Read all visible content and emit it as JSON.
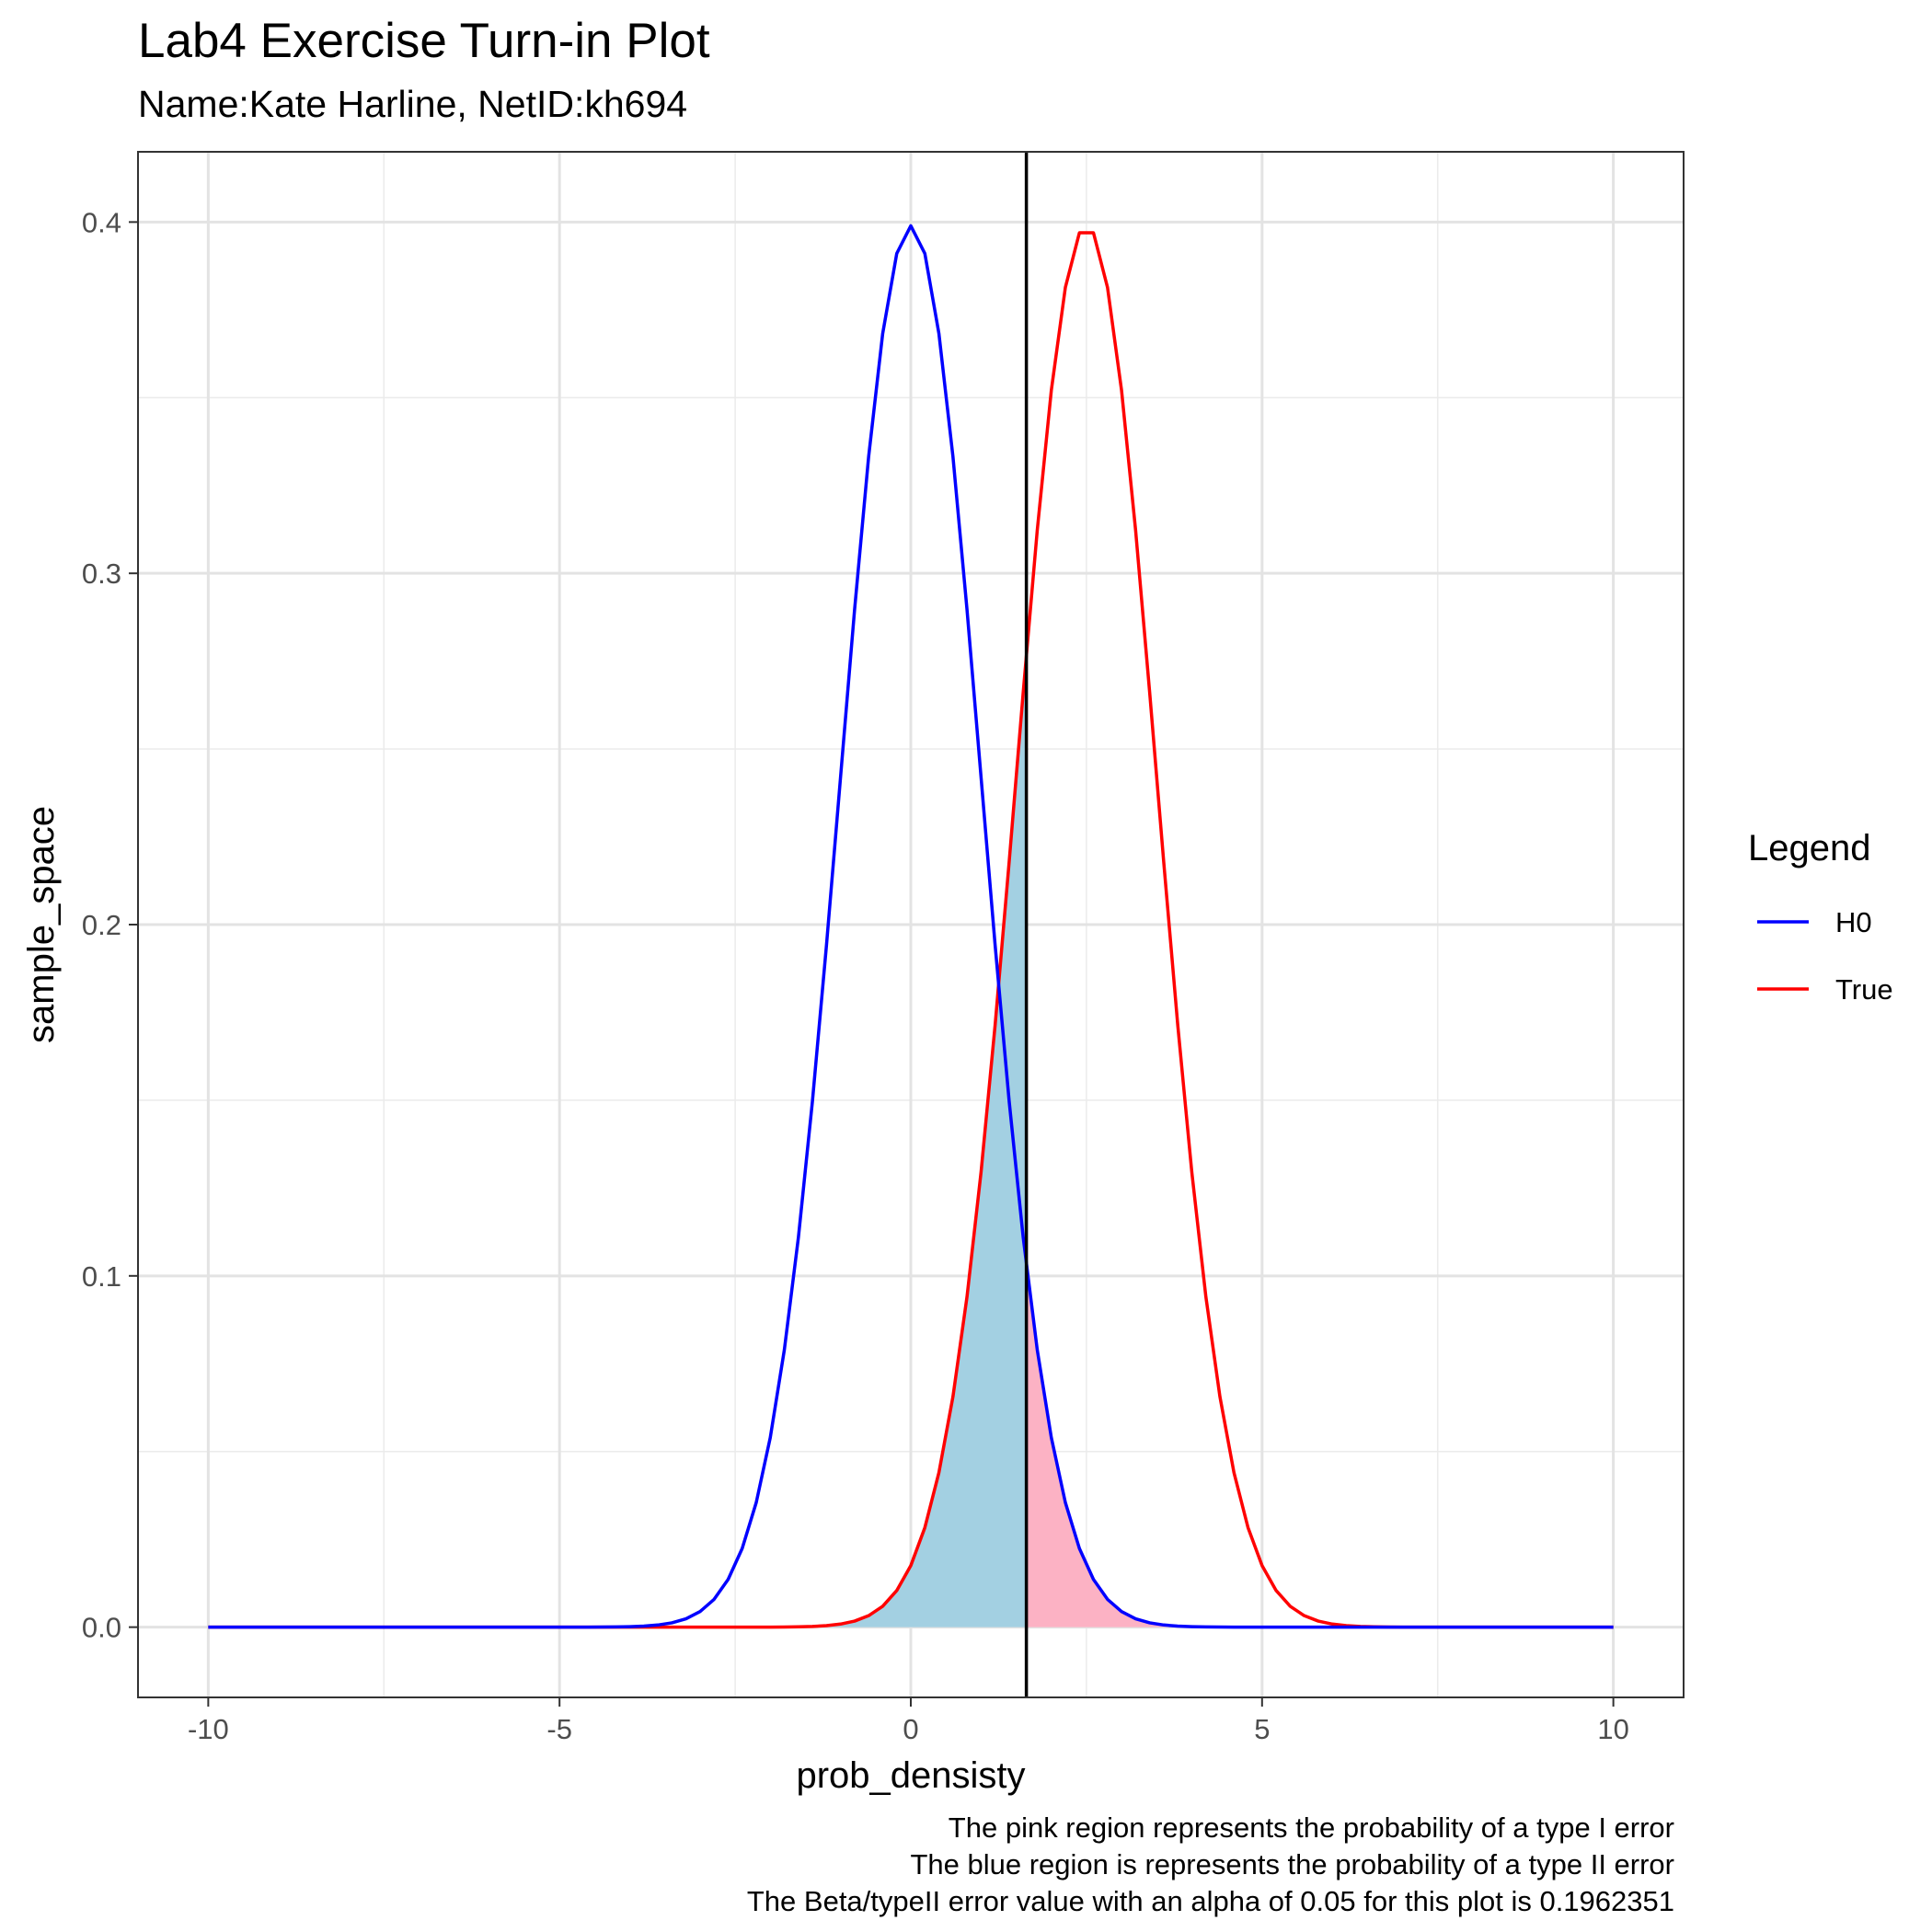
{
  "chart_data": {
    "type": "line",
    "title": "Lab4 Exercise Turn-in Plot",
    "subtitle": "Name:Kate Harline, NetID:kh694",
    "xlabel": "prob_densisty",
    "ylabel": "sample_space",
    "xlim": [
      -11,
      11
    ],
    "ylim": [
      -0.02,
      0.42
    ],
    "x_ticks": [
      -10,
      -5,
      0,
      5,
      10
    ],
    "x_tick_labels": [
      "-10",
      "-5",
      "0",
      "5",
      "10"
    ],
    "y_ticks": [
      0.0,
      0.1,
      0.2,
      0.3,
      0.4
    ],
    "y_tick_labels": [
      "0.0",
      "0.1",
      "0.2",
      "0.3",
      "0.4"
    ],
    "grid": true,
    "legend_title": "Legend",
    "legend_position": "right",
    "series": [
      {
        "name": "H0",
        "distribution": "normal",
        "mean": 0,
        "sd": 1,
        "x_range": [
          -10,
          10
        ],
        "color": "#0000ff"
      },
      {
        "name": "True",
        "distribution": "normal",
        "mean": 2.5,
        "sd": 1,
        "x_range": [
          -10,
          10
        ],
        "color": "#ff0000"
      }
    ],
    "critical_value": 1.645,
    "shaded_regions": [
      {
        "description": "blue region: under True curve, left of critical value",
        "color": "#a3d0e2"
      },
      {
        "description": "pink region: under H0 curve, right of critical value",
        "color": "#fcb2c4"
      }
    ],
    "caption": [
      "The pink region represents the probability of a type I error",
      "The blue region is represents the probability of a type II error",
      "The Beta/typeII error value with an alpha of 0.05 for this plot is  0.1962351"
    ]
  }
}
